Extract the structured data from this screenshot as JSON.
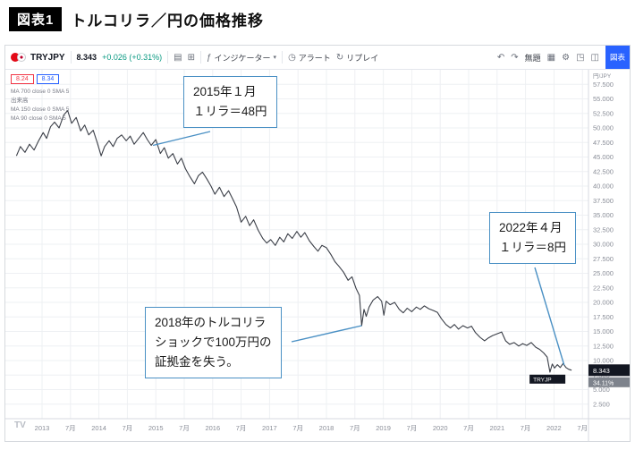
{
  "header": {
    "badge": "図表1",
    "title": "トルコリラ／円の価格推移"
  },
  "toolbar": {
    "symbol": "TRYJPY",
    "price": "8.343",
    "change": "+0.026 (+0.31%)",
    "indicators_label": "インジケーター",
    "alert_label": "アラート",
    "replay_label": "リプレイ",
    "layout_name": "無題",
    "chart_button_label": "図表"
  },
  "legend": {
    "sell_price": "8.24",
    "buy_price": "8.34",
    "rows": [
      "MA 700 close 0 SMA 5",
      "出来高",
      "MA 150 close 0 SMA 5",
      "MA 90 close 0 SMA 5"
    ]
  },
  "axis": {
    "unit_label": "円/JPY",
    "price_tag": "8.343",
    "percent_tag": "34.11%",
    "symbol_tag": "TRYJP"
  },
  "watermark": "TV",
  "annotations": [
    {
      "lines": [
        "2015年１月",
        "１リラ＝48円"
      ],
      "target": [
        2014.95,
        47.0
      ]
    },
    {
      "lines": [
        "2022年４月",
        "１リラ＝8円"
      ],
      "target": [
        2022.18,
        9.2
      ]
    },
    {
      "lines": [
        "2018年のトルコリラ",
        "ショックで100万円の",
        "証拠金を失う。"
      ],
      "target": [
        2018.62,
        16.0
      ]
    }
  ],
  "chart_data": {
    "type": "line",
    "title": "トルコリラ／円の価格推移",
    "series_name": "TRYJPY",
    "x_unit": "year",
    "y_unit": "JPY",
    "x_domain": [
      2012.5,
      2022.65
    ],
    "y_domain": [
      0,
      60
    ],
    "grid": true,
    "y_ticks": [
      [
        2.5,
        "2.500"
      ],
      [
        5,
        "5.000"
      ],
      [
        7.5,
        "7.500"
      ],
      [
        10,
        "10.000"
      ],
      [
        12.5,
        "12.500"
      ],
      [
        15,
        "15.000"
      ],
      [
        17.5,
        "17.500"
      ],
      [
        20,
        "20.000"
      ],
      [
        22.5,
        "22.500"
      ],
      [
        25,
        "25.000"
      ],
      [
        27.5,
        "27.500"
      ],
      [
        30,
        "30.000"
      ],
      [
        32.5,
        "32.500"
      ],
      [
        35,
        "35.000"
      ],
      [
        37.5,
        "37.500"
      ],
      [
        40,
        "40.000"
      ],
      [
        42.5,
        "42.500"
      ],
      [
        45,
        "45.000"
      ],
      [
        47.5,
        "47.500"
      ],
      [
        50,
        "50.000"
      ],
      [
        52.5,
        "52.500"
      ],
      [
        55,
        "55.000"
      ],
      [
        57.5,
        "57.500"
      ]
    ],
    "x_ticks": [
      [
        2013,
        "2013"
      ],
      [
        2013.5,
        "7月"
      ],
      [
        2014,
        "2014"
      ],
      [
        2014.5,
        "7月"
      ],
      [
        2015,
        "2015"
      ],
      [
        2015.5,
        "7月"
      ],
      [
        2016,
        "2016"
      ],
      [
        2016.5,
        "7月"
      ],
      [
        2017,
        "2017"
      ],
      [
        2017.5,
        "7月"
      ],
      [
        2018,
        "2018"
      ],
      [
        2018.5,
        "7月"
      ],
      [
        2019,
        "2019"
      ],
      [
        2019.5,
        "7月"
      ],
      [
        2020,
        "2020"
      ],
      [
        2020.5,
        "7月"
      ],
      [
        2021,
        "2021"
      ],
      [
        2021.5,
        "7月"
      ],
      [
        2022,
        "2022"
      ],
      [
        2022.5,
        "7月"
      ]
    ],
    "points": [
      [
        2012.55,
        45.2
      ],
      [
        2012.62,
        46.8
      ],
      [
        2012.7,
        45.8
      ],
      [
        2012.78,
        47.2
      ],
      [
        2012.86,
        46.2
      ],
      [
        2012.94,
        47.8
      ],
      [
        2013.02,
        49.2
      ],
      [
        2013.08,
        48.2
      ],
      [
        2013.15,
        50.2
      ],
      [
        2013.22,
        51.0
      ],
      [
        2013.3,
        50.0
      ],
      [
        2013.38,
        52.2
      ],
      [
        2013.45,
        53.0
      ],
      [
        2013.52,
        50.8
      ],
      [
        2013.6,
        51.8
      ],
      [
        2013.68,
        49.5
      ],
      [
        2013.75,
        50.5
      ],
      [
        2013.82,
        48.8
      ],
      [
        2013.9,
        49.6
      ],
      [
        2013.97,
        47.5
      ],
      [
        2014.04,
        45.2
      ],
      [
        2014.1,
        46.8
      ],
      [
        2014.18,
        47.8
      ],
      [
        2014.25,
        46.8
      ],
      [
        2014.32,
        48.2
      ],
      [
        2014.4,
        48.8
      ],
      [
        2014.48,
        47.8
      ],
      [
        2014.55,
        48.6
      ],
      [
        2014.62,
        47.2
      ],
      [
        2014.7,
        48.2
      ],
      [
        2014.78,
        49.2
      ],
      [
        2014.85,
        48.0
      ],
      [
        2014.92,
        47.0
      ],
      [
        2015.0,
        48.0
      ],
      [
        2015.08,
        45.6
      ],
      [
        2015.15,
        46.6
      ],
      [
        2015.22,
        44.8
      ],
      [
        2015.3,
        45.6
      ],
      [
        2015.38,
        43.8
      ],
      [
        2015.45,
        44.8
      ],
      [
        2015.52,
        43.0
      ],
      [
        2015.6,
        41.6
      ],
      [
        2015.68,
        40.4
      ],
      [
        2015.75,
        41.8
      ],
      [
        2015.82,
        42.4
      ],
      [
        2015.9,
        41.2
      ],
      [
        2015.97,
        40.0
      ],
      [
        2016.04,
        38.6
      ],
      [
        2016.12,
        39.8
      ],
      [
        2016.2,
        38.2
      ],
      [
        2016.28,
        39.2
      ],
      [
        2016.35,
        37.8
      ],
      [
        2016.42,
        36.4
      ],
      [
        2016.5,
        33.8
      ],
      [
        2016.58,
        34.8
      ],
      [
        2016.65,
        33.2
      ],
      [
        2016.72,
        34.2
      ],
      [
        2016.8,
        32.4
      ],
      [
        2016.88,
        31.0
      ],
      [
        2016.95,
        30.2
      ],
      [
        2017.02,
        30.8
      ],
      [
        2017.1,
        29.8
      ],
      [
        2017.18,
        31.2
      ],
      [
        2017.25,
        30.4
      ],
      [
        2017.32,
        31.8
      ],
      [
        2017.4,
        31.0
      ],
      [
        2017.48,
        32.2
      ],
      [
        2017.55,
        31.2
      ],
      [
        2017.62,
        32.0
      ],
      [
        2017.7,
        30.6
      ],
      [
        2017.78,
        29.6
      ],
      [
        2017.85,
        28.8
      ],
      [
        2017.92,
        29.8
      ],
      [
        2018.0,
        29.4
      ],
      [
        2018.08,
        28.2
      ],
      [
        2018.15,
        27.0
      ],
      [
        2018.22,
        26.2
      ],
      [
        2018.3,
        25.2
      ],
      [
        2018.38,
        23.8
      ],
      [
        2018.45,
        24.4
      ],
      [
        2018.52,
        22.4
      ],
      [
        2018.58,
        21.2
      ],
      [
        2018.62,
        16.0
      ],
      [
        2018.66,
        18.8
      ],
      [
        2018.7,
        17.6
      ],
      [
        2018.75,
        19.2
      ],
      [
        2018.82,
        20.4
      ],
      [
        2018.9,
        21.0
      ],
      [
        2018.97,
        20.2
      ],
      [
        2019.01,
        17.8
      ],
      [
        2019.05,
        20.2
      ],
      [
        2019.12,
        19.6
      ],
      [
        2019.2,
        20.0
      ],
      [
        2019.28,
        18.8
      ],
      [
        2019.35,
        18.2
      ],
      [
        2019.42,
        19.0
      ],
      [
        2019.5,
        18.4
      ],
      [
        2019.58,
        19.2
      ],
      [
        2019.65,
        18.8
      ],
      [
        2019.72,
        19.4
      ],
      [
        2019.8,
        18.9
      ],
      [
        2019.88,
        18.6
      ],
      [
        2019.95,
        18.3
      ],
      [
        2020.02,
        17.2
      ],
      [
        2020.1,
        16.2
      ],
      [
        2020.18,
        15.6
      ],
      [
        2020.25,
        16.2
      ],
      [
        2020.32,
        15.4
      ],
      [
        2020.4,
        16.0
      ],
      [
        2020.48,
        15.6
      ],
      [
        2020.55,
        15.9
      ],
      [
        2020.62,
        14.8
      ],
      [
        2020.7,
        14.0
      ],
      [
        2020.78,
        13.4
      ],
      [
        2020.85,
        13.9
      ],
      [
        2020.92,
        14.3
      ],
      [
        2021.0,
        14.6
      ],
      [
        2021.08,
        14.9
      ],
      [
        2021.15,
        13.4
      ],
      [
        2021.22,
        12.8
      ],
      [
        2021.3,
        13.1
      ],
      [
        2021.38,
        12.5
      ],
      [
        2021.45,
        12.9
      ],
      [
        2021.52,
        12.6
      ],
      [
        2021.6,
        13.1
      ],
      [
        2021.68,
        12.3
      ],
      [
        2021.75,
        11.9
      ],
      [
        2021.82,
        11.3
      ],
      [
        2021.88,
        10.6
      ],
      [
        2021.93,
        8.0
      ],
      [
        2021.97,
        9.4
      ],
      [
        2022.01,
        8.7
      ],
      [
        2022.06,
        9.3
      ],
      [
        2022.11,
        8.8
      ],
      [
        2022.16,
        9.5
      ],
      [
        2022.21,
        8.8
      ],
      [
        2022.26,
        8.5
      ],
      [
        2022.31,
        8.343
      ]
    ]
  }
}
